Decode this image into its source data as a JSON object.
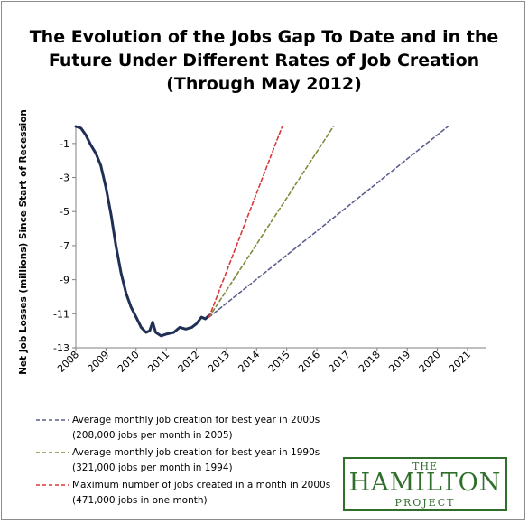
{
  "title_lines": [
    "The Evolution of the Jobs Gap To Date and in the",
    "Future Under Different Rates of Job Creation",
    "(Through May 2012)"
  ],
  "logo": {
    "line1": "THE",
    "line2": "HAMILTON",
    "line3": "PROJECT",
    "color": "#2f6e2b"
  },
  "chart_data": {
    "type": "line",
    "title": "The Evolution of the Jobs Gap To Date and in the Future Under Different Rates of Job Creation (Through May 2012)",
    "xlabel": "",
    "ylabel": "Net Job Losses (millions) Since Start of Recession",
    "xlim": [
      2008,
      2021.6
    ],
    "ylim": [
      -13,
      0
    ],
    "x_ticks": [
      "2008",
      "2009",
      "2010",
      "2011",
      "2012",
      "2013",
      "2014",
      "2015",
      "2016",
      "2017",
      "2018",
      "2019",
      "2020",
      "2021"
    ],
    "y_ticks": [
      "-1",
      "-3",
      "-5",
      "-7",
      "-9",
      "-11",
      "-13"
    ],
    "grid": false,
    "legend_position": "bottom-left",
    "series": [
      {
        "style": "solid",
        "color": "#1f2f55",
        "points": [
          [
            2008.0,
            0
          ],
          [
            2008.17,
            -0.1
          ],
          [
            2008.33,
            -0.5
          ],
          [
            2008.5,
            -1.1
          ],
          [
            2008.67,
            -1.6
          ],
          [
            2008.83,
            -2.3
          ],
          [
            2009.0,
            -3.6
          ],
          [
            2009.17,
            -5.2
          ],
          [
            2009.33,
            -7.0
          ],
          [
            2009.5,
            -8.6
          ],
          [
            2009.67,
            -9.8
          ],
          [
            2009.83,
            -10.6
          ],
          [
            2010.0,
            -11.2
          ],
          [
            2010.17,
            -11.8
          ],
          [
            2010.33,
            -12.1
          ],
          [
            2010.45,
            -12.0
          ],
          [
            2010.55,
            -11.5
          ],
          [
            2010.65,
            -12.1
          ],
          [
            2010.83,
            -12.3
          ],
          [
            2011.0,
            -12.2
          ],
          [
            2011.25,
            -12.1
          ],
          [
            2011.45,
            -11.8
          ],
          [
            2011.65,
            -11.9
          ],
          [
            2011.85,
            -11.8
          ],
          [
            2012.0,
            -11.6
          ],
          [
            2012.17,
            -11.2
          ],
          [
            2012.3,
            -11.3
          ],
          [
            2012.42,
            -11.1
          ]
        ]
      },
      {
        "name": "Average monthly job creation for best year in 2000s",
        "sublabel": "(208,000 jobs per month in 2005)",
        "style": "dashed",
        "color": "#5b5e8e",
        "points": [
          [
            2012.42,
            -11.2
          ],
          [
            2020.35,
            0
          ]
        ]
      },
      {
        "name": "Average monthly job creation for best year in 1990s",
        "sublabel": "(321,000 jobs per month in 1994)",
        "style": "dashed",
        "color": "#7f8a3b",
        "points": [
          [
            2012.42,
            -11.2
          ],
          [
            2016.55,
            0
          ]
        ]
      },
      {
        "name": "Maximum number of jobs created in a month  in 2000s",
        "sublabel": "(471,000 jobs in one month)",
        "style": "dashed",
        "color": "#d9383a",
        "points": [
          [
            2012.42,
            -11.2
          ],
          [
            2014.85,
            0
          ]
        ]
      }
    ]
  }
}
